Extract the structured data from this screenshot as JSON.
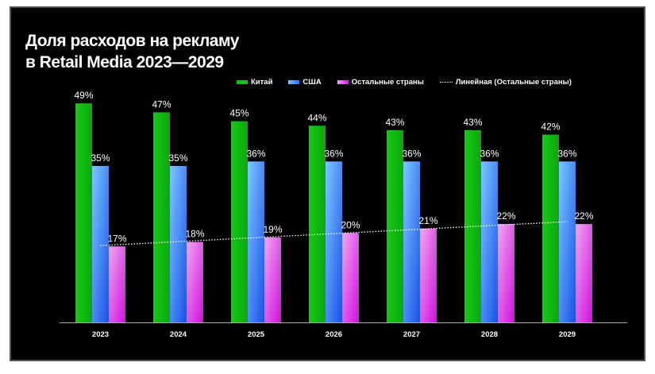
{
  "chart_data": {
    "type": "bar",
    "title_line1": "Доля расходов на рекламу",
    "title_line2": "в Retail Media 2023—2029",
    "categories": [
      "2023",
      "2024",
      "2025",
      "2026",
      "2027",
      "2028",
      "2029"
    ],
    "series": [
      {
        "name": "Китай",
        "color": "#11c411",
        "values": [
          49,
          47,
          45,
          44,
          43,
          43,
          42
        ]
      },
      {
        "name": "США",
        "color": "#4aa8ff",
        "values": [
          35,
          35,
          36,
          36,
          36,
          36,
          36
        ]
      },
      {
        "name": "Остальные страны",
        "color": "#e060e8",
        "values": [
          17,
          18,
          19,
          20,
          21,
          22,
          22
        ]
      }
    ],
    "trendline": {
      "name": "Линейная (Остальные страны)",
      "style": "dotted",
      "color": "#ffffff"
    },
    "ylim": [
      0,
      50
    ],
    "grid": false,
    "legend_position": "top-right",
    "label_suffix": "%"
  }
}
